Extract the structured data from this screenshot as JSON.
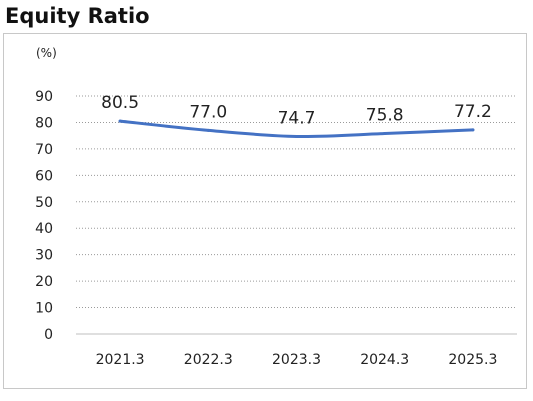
{
  "chart_data": {
    "type": "line",
    "title": "Equity Ratio",
    "ylabel": "(%)",
    "categories": [
      "2021.3",
      "2022.3",
      "2023.3",
      "2024.3",
      "2025.3"
    ],
    "series": [
      {
        "values": [
          80.5,
          77.0,
          74.7,
          75.8,
          77.2
        ],
        "data_labels": [
          "80.5",
          "77.0",
          "74.7",
          "75.8",
          "77.2"
        ],
        "color": "#4472c4"
      }
    ],
    "ylim": [
      0,
      90
    ],
    "yticks": [
      0,
      10,
      20,
      30,
      40,
      50,
      60,
      70,
      80,
      90
    ],
    "grid": "horizontal-dotted",
    "legend": "none"
  }
}
